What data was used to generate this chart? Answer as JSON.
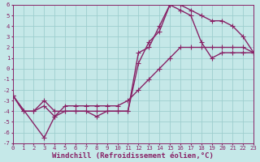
{
  "xlabel": "Windchill (Refroidissement éolien,°C)",
  "xlim": [
    0,
    23
  ],
  "ylim": [
    -7,
    6
  ],
  "xticks": [
    0,
    1,
    2,
    3,
    4,
    5,
    6,
    7,
    8,
    9,
    10,
    11,
    12,
    13,
    14,
    15,
    16,
    17,
    18,
    19,
    20,
    21,
    22,
    23
  ],
  "yticks": [
    -7,
    -6,
    -5,
    -4,
    -3,
    -2,
    -1,
    0,
    1,
    2,
    3,
    4,
    5,
    6
  ],
  "bg_color": "#c5e8e8",
  "grid_color": "#9ecece",
  "line_color": "#882266",
  "curve1_x": [
    0,
    1,
    2,
    3,
    4,
    5,
    6,
    7,
    8,
    9,
    10,
    11,
    12,
    13,
    14,
    15,
    16,
    17,
    18,
    19,
    20,
    21,
    22,
    23
  ],
  "curve1_y": [
    -2.5,
    -4,
    -4,
    -3,
    -4,
    -4,
    -4,
    -4,
    -4,
    -4,
    -4,
    -4,
    0.5,
    2.5,
    3.5,
    6,
    6,
    5.5,
    5,
    4.5,
    4.5,
    4,
    3,
    1.5
  ],
  "curve2_x": [
    0,
    1,
    2,
    3,
    4,
    5,
    6,
    7,
    8,
    9,
    10,
    11,
    12,
    13,
    14,
    15,
    16,
    17,
    18,
    19,
    20,
    21,
    22,
    23
  ],
  "curve2_y": [
    -2.5,
    -4,
    -4,
    -3.5,
    -4.5,
    -4,
    -4,
    -4,
    -4.5,
    -4,
    -4,
    -4,
    1.5,
    2,
    4,
    6,
    5.5,
    5,
    2.5,
    1,
    1.5,
    1.5,
    1.5,
    1.5
  ],
  "curve3_x": [
    0,
    3,
    4,
    5,
    6,
    7,
    8,
    9,
    10,
    11,
    12,
    13,
    14,
    15,
    16,
    17,
    18,
    19,
    20,
    21,
    22,
    23
  ],
  "curve3_y": [
    -2.5,
    -6.5,
    -4.5,
    -3.5,
    -3.5,
    -3.5,
    -3.5,
    -3.5,
    -3.5,
    -3,
    -2,
    -1,
    0,
    1,
    2,
    2,
    2,
    2,
    2,
    2,
    2,
    1.5
  ],
  "marker_size": 3,
  "line_width": 1.0,
  "tick_fontsize": 5.2,
  "xlabel_fontsize": 6.5,
  "figsize": [
    3.2,
    2.0
  ],
  "dpi": 100
}
